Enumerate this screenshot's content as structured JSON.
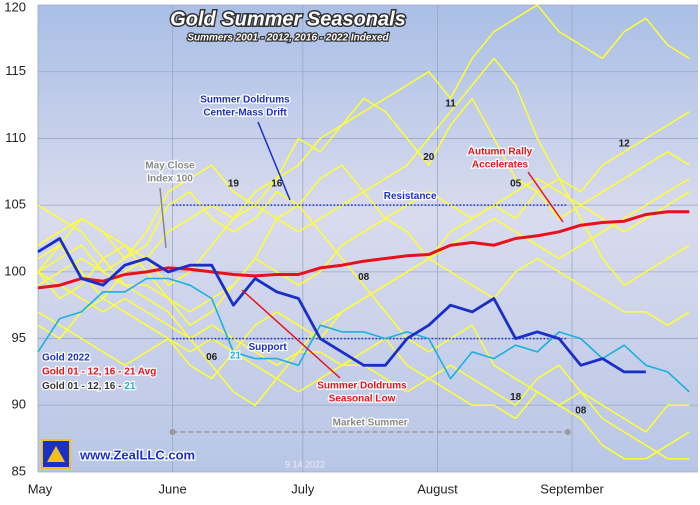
{
  "chart_data": {
    "type": "line",
    "title": "Gold Summer Seasonals",
    "subtitle": "Summers 2001 - 2012, 2016 - 2022 Indexed",
    "x": [
      0,
      5,
      10,
      15,
      20,
      25,
      30,
      35,
      40,
      45,
      50,
      55,
      60,
      65,
      70,
      75,
      80,
      85,
      90,
      95,
      100,
      105,
      110,
      115,
      120,
      125,
      130,
      135,
      140,
      145,
      150
    ],
    "xlim": [
      0,
      152
    ],
    "xticks": [
      {
        "value": 0,
        "label": "May"
      },
      {
        "value": 31,
        "label": "June"
      },
      {
        "value": 61,
        "label": "July"
      },
      {
        "value": 92,
        "label": "August"
      },
      {
        "value": 123,
        "label": "September"
      }
    ],
    "ylim": [
      85,
      120
    ],
    "yticks": [
      85,
      90,
      95,
      100,
      105,
      110,
      115,
      120
    ],
    "grid": true,
    "series": [
      {
        "name": "19",
        "color": "#ffff33",
        "values": [
          100,
          101,
          102,
          100,
          101,
          103,
          106,
          107,
          108,
          106,
          105,
          107,
          110,
          109,
          111,
          112,
          113,
          114,
          115,
          113,
          116,
          118,
          119,
          120,
          118,
          117,
          116,
          118,
          119,
          117,
          116
        ]
      },
      {
        "name": "16",
        "color": "#ffff33",
        "values": [
          100,
          102,
          104,
          103,
          101,
          102,
          105,
          106,
          104,
          103,
          104,
          106,
          105,
          107,
          108,
          106,
          104,
          103,
          101,
          100,
          99,
          98,
          100,
          101,
          100,
          99,
          98,
          97,
          97,
          96,
          97
        ]
      },
      {
        "name": "08",
        "color": "#ffff33",
        "values": [
          100,
          98,
          99,
          101,
          102,
          100,
          98,
          96,
          97,
          99,
          101,
          104,
          105,
          103,
          101,
          99,
          97,
          95,
          94,
          95,
          96,
          93,
          92,
          91,
          90,
          91,
          89,
          88,
          87,
          86,
          86
        ]
      },
      {
        "name": "20",
        "color": "#ffff33",
        "values": [
          96,
          95,
          97,
          98,
          100,
          101,
          99,
          100,
          102,
          104,
          106,
          107,
          108,
          110,
          111,
          113,
          112,
          110,
          108,
          111,
          113,
          110,
          107,
          106,
          104,
          105,
          106,
          107,
          108,
          109,
          108
        ]
      },
      {
        "name": "11",
        "color": "#ffff33",
        "values": [
          102,
          103,
          104,
          103,
          102,
          101,
          103,
          104,
          105,
          104,
          105,
          104,
          103,
          104,
          105,
          106,
          107,
          108,
          110,
          112,
          114,
          116,
          114,
          110,
          107,
          104,
          101,
          99,
          100,
          101,
          102
        ]
      },
      {
        "name": "05",
        "color": "#ffff33",
        "values": [
          99,
          100,
          101,
          100,
          99,
          99,
          98,
          97,
          98,
          99,
          101,
          100,
          99,
          100,
          102,
          103,
          104,
          105,
          106,
          105,
          104,
          105,
          106,
          107,
          106,
          105,
          104,
          103,
          104,
          105,
          106
        ]
      },
      {
        "name": "12",
        "color": "#ffff33",
        "values": [
          97,
          96,
          95,
          94,
          93,
          94,
          95,
          93,
          92,
          94,
          96,
          97,
          96,
          95,
          97,
          98,
          99,
          100,
          101,
          103,
          104,
          105,
          104,
          106,
          107,
          106,
          108,
          109,
          110,
          111,
          112
        ]
      },
      {
        "name": "18",
        "color": "#ffff33",
        "values": [
          100,
          99,
          98,
          97,
          98,
          97,
          96,
          95,
          96,
          95,
          94,
          93,
          94,
          94,
          93,
          93,
          92,
          91,
          92,
          93,
          92,
          91,
          90,
          92,
          93,
          91,
          90,
          89,
          88,
          90,
          90
        ]
      },
      {
        "name": "08",
        "color": "#ffff33",
        "values": [
          101,
          102,
          100,
          98,
          97,
          96,
          95,
          94,
          95,
          94,
          93,
          92,
          91,
          92,
          93,
          94,
          95,
          93,
          92,
          91,
          90,
          90,
          89,
          91,
          90,
          89,
          87,
          86,
          86,
          87,
          88
        ]
      },
      {
        "name": "06",
        "color": "#ffff33",
        "values": [
          105,
          104,
          103,
          101,
          99,
          98,
          97,
          95,
          93,
          91,
          90,
          92,
          94,
          96,
          97,
          98,
          99,
          100,
          101,
          102,
          103,
          104,
          103,
          102,
          101,
          102,
          103,
          104,
          105,
          106,
          107
        ]
      },
      {
        "name": "21",
        "color": "#1ab0e0",
        "values": [
          94,
          96.5,
          97,
          98.5,
          98.5,
          99.5,
          99.5,
          99,
          98,
          94,
          93.5,
          93.5,
          93,
          96,
          95.5,
          95.5,
          95,
          95.5,
          95,
          92,
          94,
          93.5,
          94.5,
          94,
          95.5,
          95,
          93.5,
          94.5,
          93,
          92.5,
          91
        ]
      },
      {
        "name": "Gold 01 - 12, 16 - 21 Avg",
        "color": "#e8101a",
        "values": [
          98.8,
          99,
          99.5,
          99.3,
          99.8,
          100,
          100.3,
          100.2,
          100,
          99.8,
          99.7,
          99.8,
          99.8,
          100.3,
          100.5,
          100.8,
          101,
          101.2,
          101.3,
          102,
          102.2,
          102,
          102.5,
          102.7,
          103,
          103.5,
          103.7,
          103.8,
          104.3,
          104.5,
          104.5
        ]
      },
      {
        "name": "Gold 2022",
        "color": "#1a2fc8",
        "values": [
          101.5,
          102.5,
          99.5,
          99,
          100.5,
          101,
          100,
          100.5,
          100.5,
          97.5,
          99.5,
          98.5,
          98,
          95,
          94,
          93,
          93,
          95,
          96,
          97.5,
          97,
          98,
          95,
          95.5,
          95,
          93,
          93.5,
          92.5,
          92.5,
          null,
          null
        ]
      }
    ],
    "legend_third_line": "Gold 01 - 12, 16 - ",
    "reference_lines": [
      {
        "label": "Resistance",
        "value": 105,
        "x": [
          31,
          122
        ],
        "color": "#1a2fc8"
      },
      {
        "label": "Support",
        "value": 95,
        "x": [
          31,
          122
        ],
        "color": "#1a2fc8"
      },
      {
        "label": "Market Summer",
        "value": 88,
        "x": [
          31,
          122
        ],
        "color": "#999999"
      }
    ],
    "annotations": {
      "doldrums_drift": [
        "Summer Doldrums",
        "Center-Mass Drift"
      ],
      "may_close": [
        "May Close",
        "Index 100"
      ],
      "autumn_rally": [
        "Autumn Rally",
        "Accelerates"
      ],
      "seasonal_low": [
        "Summer Doldrums",
        "Seasonal Low"
      ]
    },
    "website": "www.ZealLLC.com",
    "date": "9.14.2022"
  }
}
